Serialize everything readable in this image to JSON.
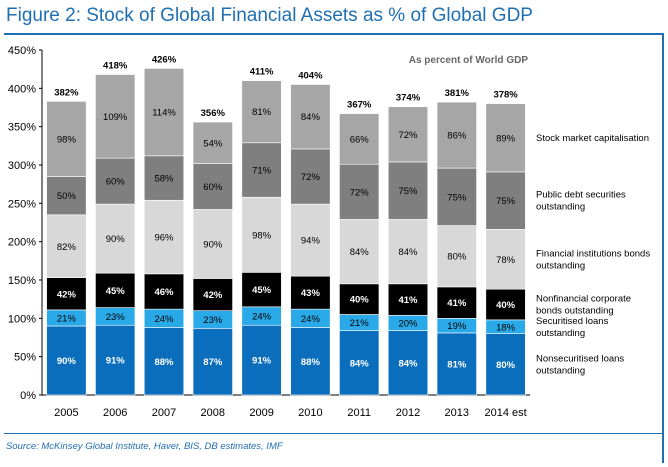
{
  "header": {
    "title": "Figure 2: Stock of Global Financial Assets as % of Global GDP",
    "source": "Source: McKinsey Global Institute, Haver, BIS, DB estimates, IMF"
  },
  "chart_data": {
    "type": "bar",
    "stacked": true,
    "subtitle": "As percent of World GDP",
    "categories": [
      "2005",
      "2006",
      "2007",
      "2008",
      "2009",
      "2010",
      "2011",
      "2012",
      "2013",
      "2014 est"
    ],
    "totals": [
      "382%",
      "418%",
      "426%",
      "356%",
      "411%",
      "404%",
      "367%",
      "374%",
      "381%",
      "378%"
    ],
    "ylim": [
      0,
      450
    ],
    "yticks": [
      "0%",
      "50%",
      "100%",
      "150%",
      "200%",
      "250%",
      "300%",
      "350%",
      "400%",
      "450%"
    ],
    "series": [
      {
        "name": "Nonsecuritised loans outstanding",
        "legend_lines": [
          "Nonsecuritised loans",
          "outstanding"
        ],
        "color": "#0a6ebd",
        "label_color": "#ffffff",
        "label_bold": true,
        "values": [
          90,
          91,
          88,
          87,
          91,
          88,
          84,
          84,
          81,
          80
        ],
        "labels": [
          "90%",
          "91%",
          "88%",
          "87%",
          "91%",
          "88%",
          "84%",
          "84%",
          "81%",
          "80%"
        ]
      },
      {
        "name": "Securitised loans outstanding",
        "legend_lines": [
          "Securitised loans",
          "outstanding"
        ],
        "color": "#2aa9e8",
        "label_color": "#000000",
        "label_bold": false,
        "values": [
          21,
          23,
          24,
          23,
          24,
          24,
          21,
          20,
          19,
          18
        ],
        "labels": [
          "21%",
          "23%",
          "24%",
          "23%",
          "24%",
          "24%",
          "21%",
          "20%",
          "19%",
          "18%"
        ]
      },
      {
        "name": "Nonfinancial corporate bonds outstanding",
        "legend_lines": [
          "Nonfinancial corporate",
          "bonds outstanding"
        ],
        "color": "#000000",
        "label_color": "#ffffff",
        "label_bold": true,
        "values": [
          42,
          45,
          46,
          42,
          45,
          43,
          40,
          41,
          41,
          40
        ],
        "labels": [
          "42%",
          "45%",
          "46%",
          "42%",
          "45%",
          "43%",
          "40%",
          "41%",
          "41%",
          "40%"
        ]
      },
      {
        "name": "Financial institutions bonds outstanding",
        "legend_lines": [
          "Financial institutions bonds",
          "outstanding"
        ],
        "color": "#d8d8d8",
        "label_color": "#000000",
        "label_bold": false,
        "values": [
          82,
          90,
          96,
          90,
          98,
          94,
          84,
          84,
          80,
          78
        ],
        "labels": [
          "82%",
          "90%",
          "96%",
          "90%",
          "98%",
          "94%",
          "84%",
          "84%",
          "80%",
          "78%"
        ]
      },
      {
        "name": "Public debt securities outstanding",
        "legend_lines": [
          "Public debt securities",
          "outstanding"
        ],
        "color": "#7f7f7f",
        "label_color": "#000000",
        "label_bold": false,
        "values": [
          50,
          60,
          58,
          60,
          71,
          72,
          72,
          75,
          75,
          75
        ],
        "labels": [
          "50%",
          "60%",
          "58%",
          "60%",
          "71%",
          "72%",
          "72%",
          "75%",
          "75%",
          "75%"
        ]
      },
      {
        "name": "Stock market capitalisation",
        "legend_lines": [
          "Stock market capitalisation"
        ],
        "color": "#a6a6a6",
        "label_color": "#000000",
        "label_bold": false,
        "values": [
          98,
          109,
          114,
          54,
          81,
          84,
          66,
          72,
          86,
          89
        ],
        "labels": [
          "98%",
          "109%",
          "114%",
          "54%",
          "81%",
          "84%",
          "66%",
          "72%",
          "86%",
          "89%"
        ]
      }
    ]
  }
}
